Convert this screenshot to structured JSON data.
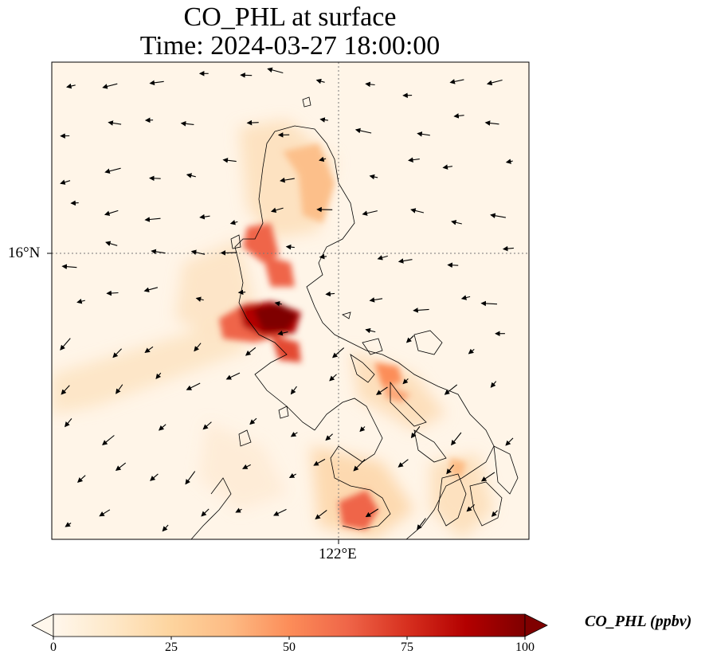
{
  "title": {
    "line1": "CO_PHL at surface",
    "line2": "Time: 2024-03-27 18:00:00"
  },
  "axes": {
    "lat_label": "16°N",
    "lon_label": "122°E"
  },
  "colorbar": {
    "label": "CO_PHL (ppbv)",
    "ticks": [
      "0",
      "25",
      "50",
      "75",
      "100"
    ],
    "range": [
      0,
      100
    ],
    "colormap": "OrRd",
    "extend": "both",
    "colors": [
      "#fff7ec",
      "#fee8c8",
      "#fdd49e",
      "#fdbb84",
      "#fc8d59",
      "#ef6548",
      "#d7301f",
      "#b30000",
      "#7f0000"
    ]
  },
  "map": {
    "gridlines": "dotted",
    "wind_vectors": true,
    "coastlines": true
  }
}
